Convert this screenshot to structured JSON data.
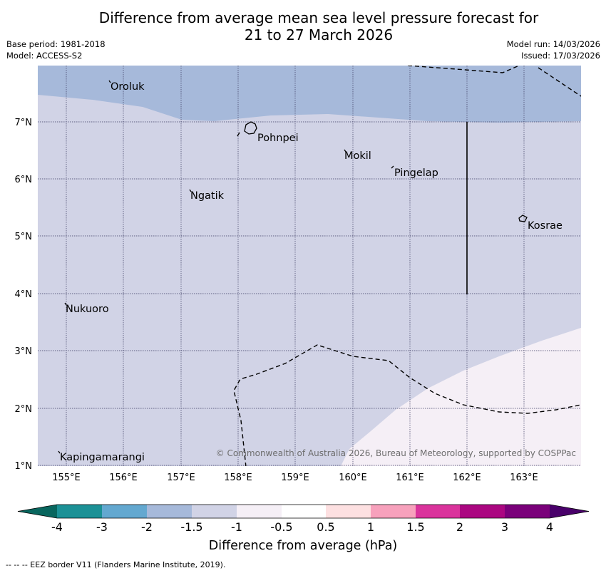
{
  "header": {
    "title_line1": "Difference from average mean sea level pressure forecast for",
    "title_line2": "21 to 27 March 2026",
    "base_period": "Base period: 1981-2018",
    "model": "Model: ACCESS-S2",
    "model_run": "Model run: 14/03/2026",
    "issued": "Issued: 17/03/2026"
  },
  "map": {
    "lon_labels": [
      "155°E",
      "156°E",
      "157°E",
      "158°E",
      "159°E",
      "160°E",
      "161°E",
      "162°E",
      "163°E"
    ],
    "lat_labels": [
      "7°N",
      "6°N",
      "5°N",
      "4°N",
      "3°N",
      "2°N",
      "1°N"
    ],
    "places": [
      "Oroluk",
      "Pohnpei",
      "Mokil",
      "Pingelap",
      "Ngatik",
      "Kosrae",
      "Nukuoro",
      "Kapingamarangi"
    ],
    "copyright": "© Commonwealth of Australia 2026, Bureau of Meteorology, supported by COSPPac",
    "fill_colors": {
      "band_minus2_minus1_5": "#a6b9da",
      "band_minus1_5_minus1": "#d1d3e6",
      "band_minus1_minus0_5": "#f5eff6"
    }
  },
  "colorbar": {
    "labels": [
      "-4",
      "-3",
      "-2",
      "-1.5",
      "-1",
      "-0.5",
      "0.5",
      "1",
      "1.5",
      "2",
      "3",
      "4"
    ],
    "colors": [
      "#08665e",
      "#1b9196",
      "#63a8d0",
      "#a6b9da",
      "#d1d3e6",
      "#f5eff6",
      "#ffffff",
      "#fde0e1",
      "#f7a1bc",
      "#da339c",
      "#ab0781",
      "#7a017a",
      "#49006a"
    ],
    "title": "Difference from average (hPa)"
  },
  "footer": {
    "eez_note": "--  --  -- EEZ border V11 (Flanders Marine Institute, 2019)."
  }
}
